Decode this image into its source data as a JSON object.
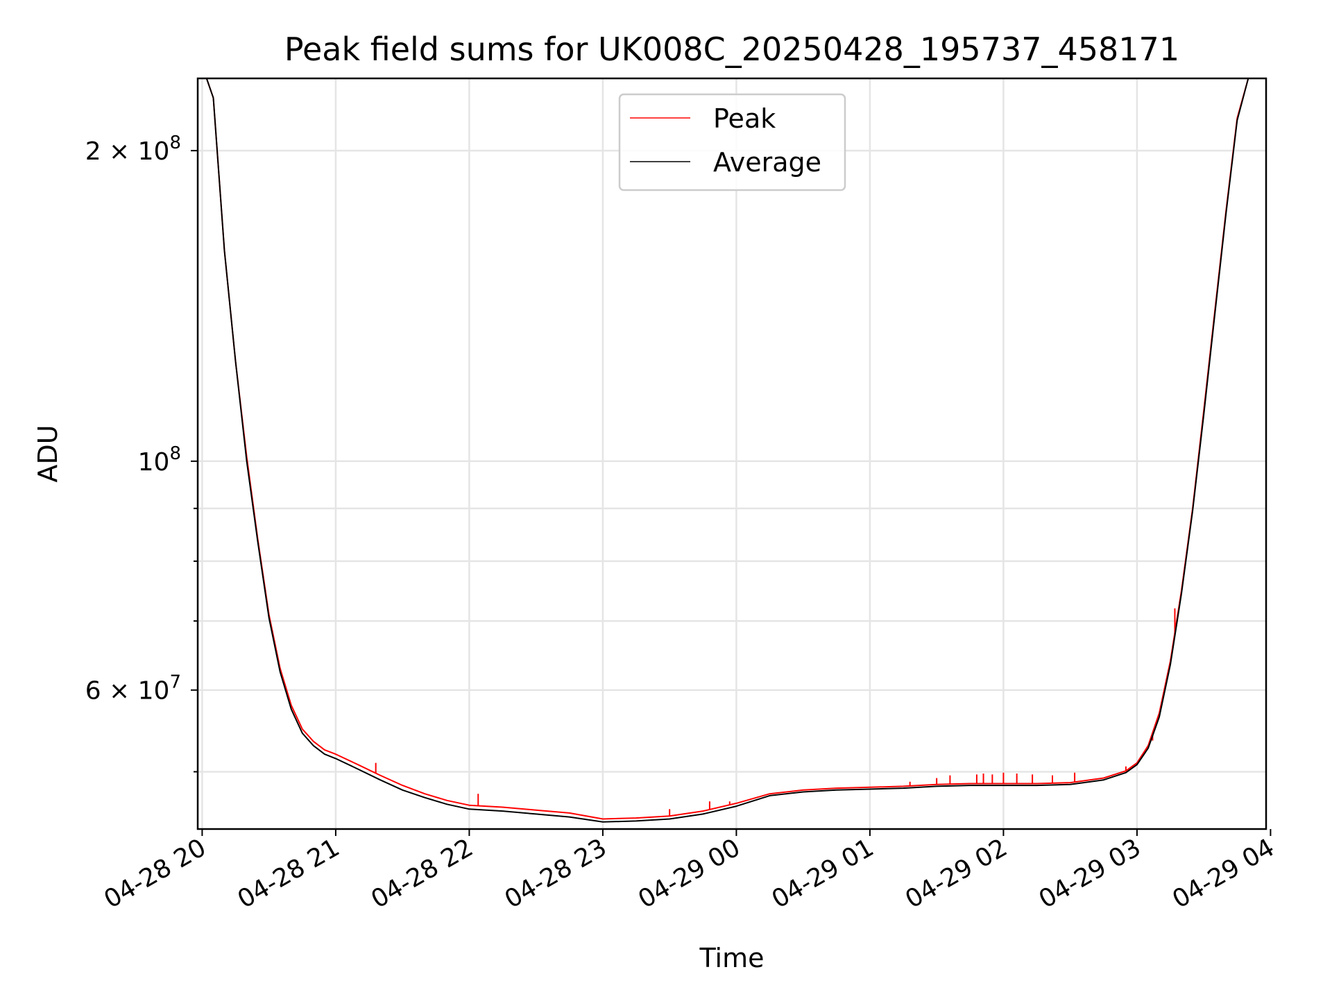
{
  "chart_data": {
    "type": "line",
    "title": "Peak field sums for UK008C_20250428_195737_458171",
    "xlabel": "Time",
    "ylabel": "ADU",
    "yscale": "log",
    "xlim": [
      "04-28 19:58",
      "04-29 03:58"
    ],
    "ylim": [
      44000000,
      235000000
    ],
    "grid": true,
    "legend_position": "upper center",
    "x_tick_labels": [
      "04-28 20",
      "04-28 21",
      "04-28 22",
      "04-28 23",
      "04-29 00",
      "04-29 01",
      "04-29 02",
      "04-29 03",
      "04-29 04"
    ],
    "x_tick_times": [
      "04-28 20:00",
      "04-28 21:00",
      "04-28 22:00",
      "04-28 23:00",
      "04-29 00:00",
      "04-29 01:00",
      "04-29 02:00",
      "04-29 03:00",
      "04-29 04:00"
    ],
    "y_ticks_major": [
      {
        "value": 200000000,
        "mantissa": "2",
        "times": "×",
        "base": "10",
        "exponent": "8"
      },
      {
        "value": 100000000,
        "mantissa": "",
        "times": "",
        "base": "10",
        "exponent": "8"
      },
      {
        "value": 60000000,
        "mantissa": "6",
        "times": "×",
        "base": "10",
        "exponent": "7"
      }
    ],
    "y_ticks_minor": [
      50000000,
      70000000,
      80000000,
      90000000
    ],
    "x": [
      "04-28 19:58",
      "04-28 20:02",
      "04-28 20:05",
      "04-28 20:10",
      "04-28 20:15",
      "04-28 20:20",
      "04-28 20:25",
      "04-28 20:30",
      "04-28 20:35",
      "04-28 20:40",
      "04-28 20:45",
      "04-28 20:50",
      "04-28 20:55",
      "04-28 21:00",
      "04-28 21:10",
      "04-28 21:20",
      "04-28 21:30",
      "04-28 21:40",
      "04-28 21:50",
      "04-28 22:00",
      "04-28 22:15",
      "04-28 22:30",
      "04-28 22:45",
      "04-28 23:00",
      "04-28 23:15",
      "04-28 23:30",
      "04-28 23:45",
      "04-29 00:00",
      "04-29 00:15",
      "04-29 00:30",
      "04-29 00:45",
      "04-29 01:00",
      "04-29 01:15",
      "04-29 01:30",
      "04-29 01:45",
      "04-29 02:00",
      "04-29 02:15",
      "04-29 02:30",
      "04-29 02:45",
      "04-29 02:55",
      "04-29 03:00",
      "04-29 03:05",
      "04-29 03:10",
      "04-29 03:15",
      "04-29 03:20",
      "04-29 03:25",
      "04-29 03:30",
      "04-29 03:35",
      "04-29 03:40",
      "04-29 03:45",
      "04-29 03:50",
      "04-29 03:55",
      "04-29 03:58"
    ],
    "series": [
      {
        "name": "Peak",
        "color": "#ff0000",
        "values": [
          235000000,
          235000000,
          225000000,
          160000000,
          125000000,
          101000000,
          84000000,
          71000000,
          63000000,
          58000000,
          55000000,
          53500000,
          52500000,
          52000000,
          50800000,
          49600000,
          48500000,
          47600000,
          46900000,
          46400000,
          46200000,
          45900000,
          45600000,
          45000000,
          45100000,
          45300000,
          45800000,
          46600000,
          47600000,
          48000000,
          48200000,
          48300000,
          48400000,
          48600000,
          48700000,
          48700000,
          48700000,
          48800000,
          49300000,
          50100000,
          51000000,
          53000000,
          57000000,
          64000000,
          75000000,
          90000000,
          112000000,
          140000000,
          175000000,
          215000000,
          235000000,
          235000000,
          235000000
        ],
        "spikes": [
          {
            "x": "04-28 21:18",
            "value": 51000000
          },
          {
            "x": "04-28 22:04",
            "value": 47600000
          },
          {
            "x": "04-28 23:30",
            "value": 46000000
          },
          {
            "x": "04-28 23:48",
            "value": 46800000
          },
          {
            "x": "04-28 23:57",
            "value": 46800000
          },
          {
            "x": "04-29 01:18",
            "value": 48900000
          },
          {
            "x": "04-29 01:30",
            "value": 49300000
          },
          {
            "x": "04-29 01:36",
            "value": 49600000
          },
          {
            "x": "04-29 01:48",
            "value": 49700000
          },
          {
            "x": "04-29 01:51",
            "value": 49800000
          },
          {
            "x": "04-29 01:55",
            "value": 49700000
          },
          {
            "x": "04-29 02:00",
            "value": 49900000
          },
          {
            "x": "04-29 02:06",
            "value": 49800000
          },
          {
            "x": "04-29 02:13",
            "value": 49700000
          },
          {
            "x": "04-29 02:22",
            "value": 49600000
          },
          {
            "x": "04-29 02:32",
            "value": 49900000
          },
          {
            "x": "04-29 02:55",
            "value": 50600000
          },
          {
            "x": "04-29 03:07",
            "value": 53600000
          },
          {
            "x": "04-29 03:10",
            "value": 56500000
          },
          {
            "x": "04-29 03:17",
            "value": 72000000
          }
        ]
      },
      {
        "name": "Average",
        "color": "#000000",
        "values": [
          235000000,
          235000000,
          225000000,
          160000000,
          125000000,
          100000000,
          83500000,
          70500000,
          62500000,
          57500000,
          54500000,
          53000000,
          52000000,
          51500000,
          50300000,
          49100000,
          48000000,
          47200000,
          46500000,
          46000000,
          45800000,
          45500000,
          45200000,
          44700000,
          44800000,
          45000000,
          45500000,
          46300000,
          47400000,
          47800000,
          48000000,
          48100000,
          48200000,
          48400000,
          48500000,
          48500000,
          48500000,
          48600000,
          49100000,
          49900000,
          50800000,
          52700000,
          56500000,
          63500000,
          74500000,
          89500000,
          111000000,
          139000000,
          174000000,
          214000000,
          235000000,
          235000000,
          235000000
        ]
      }
    ]
  }
}
